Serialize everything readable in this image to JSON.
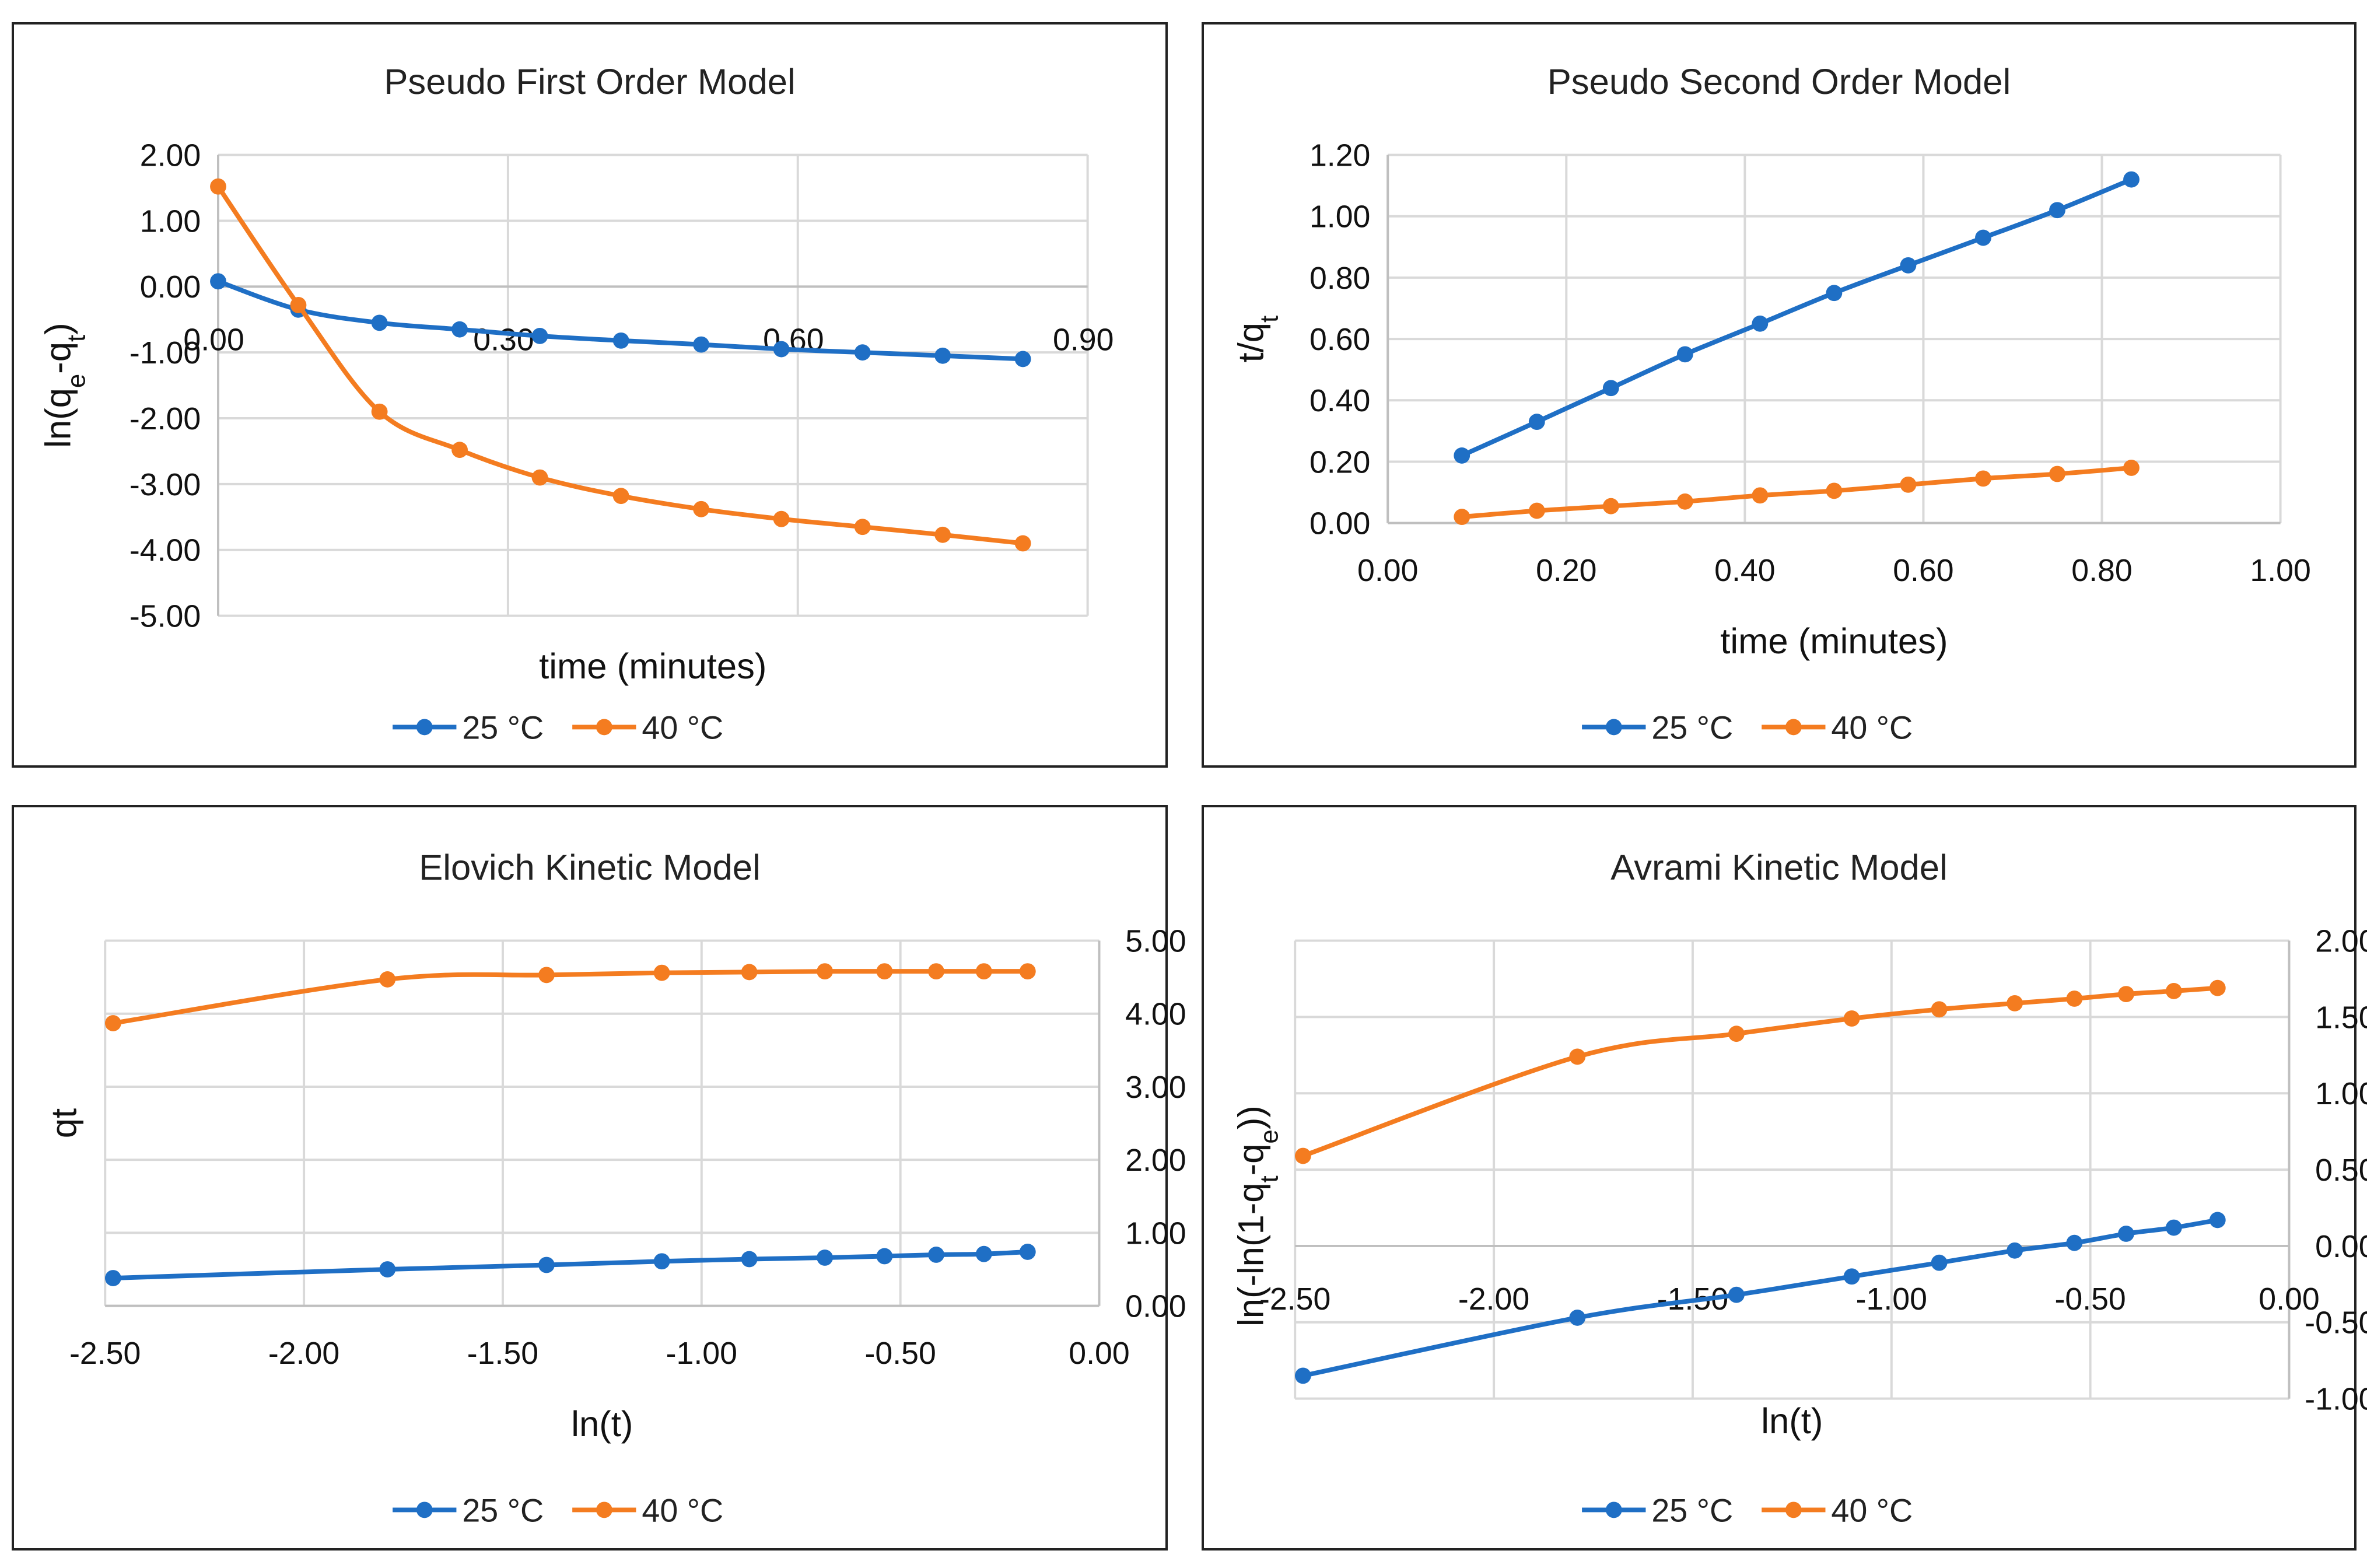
{
  "colors": {
    "series_25": "#1f6fc5",
    "series_40": "#f47c20",
    "grid": "#d9d9d9",
    "axis": "#bfbfbf"
  },
  "chart_data": [
    {
      "id": "pfo",
      "type": "line",
      "title": "Pseudo First Order Model",
      "xlabel": "time (minutes)",
      "ylabel": "ln(q<sub>e</sub>-q<sub>t</sub>)",
      "xlim": [
        0,
        0.9
      ],
      "ylim": [
        -5,
        2
      ],
      "xticks": [
        "0.00",
        "0.30",
        "0.60",
        "0.90"
      ],
      "yticks": [
        "-5.00",
        "-4.00",
        "-3.00",
        "-2.00",
        "-1.00",
        "0.00",
        "1.00",
        "2.00"
      ],
      "grid": true,
      "x_tick_labels_at": "y=0",
      "legend": "bottom",
      "series": [
        {
          "name": "25 °C",
          "x": [
            0,
            0.083,
            0.167,
            0.25,
            0.333,
            0.417,
            0.5,
            0.583,
            0.667,
            0.75,
            0.833
          ],
          "y": [
            0.08,
            -0.35,
            -0.55,
            -0.65,
            -0.75,
            -0.82,
            -0.88,
            -0.95,
            -1.0,
            -1.05,
            -1.1
          ]
        },
        {
          "name": "40 °C",
          "x": [
            0,
            0.083,
            0.167,
            0.25,
            0.333,
            0.417,
            0.5,
            0.583,
            0.667,
            0.75,
            0.833
          ],
          "y": [
            1.52,
            -0.28,
            -1.9,
            -2.48,
            -2.9,
            -3.18,
            -3.38,
            -3.53,
            -3.65,
            -3.77,
            -3.9
          ]
        }
      ]
    },
    {
      "id": "pso",
      "type": "line",
      "title": "Pseudo Second Order Model",
      "xlabel": "time (minutes)",
      "ylabel": "t/q<sub>t</sub>",
      "xlim": [
        0,
        1
      ],
      "ylim": [
        0,
        1.2
      ],
      "xticks": [
        "0.00",
        "0.20",
        "0.40",
        "0.60",
        "0.80",
        "1.00"
      ],
      "yticks": [
        "0.00",
        "0.20",
        "0.40",
        "0.60",
        "0.80",
        "1.00",
        "1.20"
      ],
      "grid": true,
      "legend": "bottom",
      "series": [
        {
          "name": "25 °C",
          "x": [
            0.083,
            0.167,
            0.25,
            0.333,
            0.417,
            0.5,
            0.583,
            0.667,
            0.75,
            0.833
          ],
          "y": [
            0.22,
            0.33,
            0.44,
            0.55,
            0.65,
            0.75,
            0.84,
            0.93,
            1.02,
            1.12
          ]
        },
        {
          "name": "40 °C",
          "x": [
            0.083,
            0.167,
            0.25,
            0.333,
            0.417,
            0.5,
            0.583,
            0.667,
            0.75,
            0.833
          ],
          "y": [
            0.02,
            0.04,
            0.055,
            0.07,
            0.09,
            0.105,
            0.125,
            0.145,
            0.16,
            0.18
          ]
        }
      ]
    },
    {
      "id": "elovich",
      "type": "line",
      "title": "Elovich Kinetic Model",
      "xlabel": "ln(t)",
      "ylabel": "qt",
      "xlim": [
        -2.5,
        0
      ],
      "ylim": [
        0,
        5
      ],
      "xticks": [
        "-2.50",
        "-2.00",
        "-1.50",
        "-1.00",
        "-0.50",
        "0.00"
      ],
      "yticks": [
        "0.00",
        "1.00",
        "2.00",
        "3.00",
        "4.00",
        "5.00"
      ],
      "grid": true,
      "y_axis_side": "right",
      "legend": "bottom",
      "series": [
        {
          "name": "25 °C",
          "x": [
            -2.48,
            -1.79,
            -1.39,
            -1.1,
            -0.88,
            -0.69,
            -0.54,
            -0.41,
            -0.29,
            -0.18
          ],
          "y": [
            0.38,
            0.5,
            0.56,
            0.61,
            0.64,
            0.66,
            0.68,
            0.7,
            0.71,
            0.74
          ]
        },
        {
          "name": "40 °C",
          "x": [
            -2.48,
            -1.79,
            -1.39,
            -1.1,
            -0.88,
            -0.69,
            -0.54,
            -0.41,
            -0.29,
            -0.18
          ],
          "y": [
            3.87,
            4.47,
            4.53,
            4.56,
            4.57,
            4.58,
            4.58,
            4.58,
            4.58,
            4.58
          ]
        }
      ]
    },
    {
      "id": "avrami",
      "type": "line",
      "title": "Avrami Kinetic Model",
      "xlabel": "ln(t)",
      "ylabel": "ln(-ln(1-q<sub>t</sub>-q<sub>e</sub>))",
      "xlim": [
        -2.5,
        0
      ],
      "ylim": [
        -1,
        2
      ],
      "xticks": [
        "-2.50",
        "-2.00",
        "-1.50",
        "-1.00",
        "-0.50",
        "0.00"
      ],
      "yticks": [
        "-1.00",
        "-0.50",
        "0.00",
        "0.50",
        "1.00",
        "1.50",
        "2.00"
      ],
      "grid": true,
      "y_axis_side": "right",
      "x_tick_labels_at": "y=0",
      "legend": "bottom",
      "series": [
        {
          "name": "25 °C",
          "x": [
            -2.48,
            -1.79,
            -1.39,
            -1.1,
            -0.88,
            -0.69,
            -0.54,
            -0.41,
            -0.29,
            -0.18
          ],
          "y": [
            -0.85,
            -0.47,
            -0.32,
            -0.2,
            -0.11,
            -0.03,
            0.02,
            0.08,
            0.12,
            0.17
          ]
        },
        {
          "name": "40 °C",
          "x": [
            -2.48,
            -1.79,
            -1.39,
            -1.1,
            -0.88,
            -0.69,
            -0.54,
            -0.41,
            -0.29,
            -0.18
          ],
          "y": [
            0.59,
            1.24,
            1.39,
            1.49,
            1.55,
            1.59,
            1.62,
            1.65,
            1.67,
            1.69
          ]
        }
      ]
    }
  ]
}
